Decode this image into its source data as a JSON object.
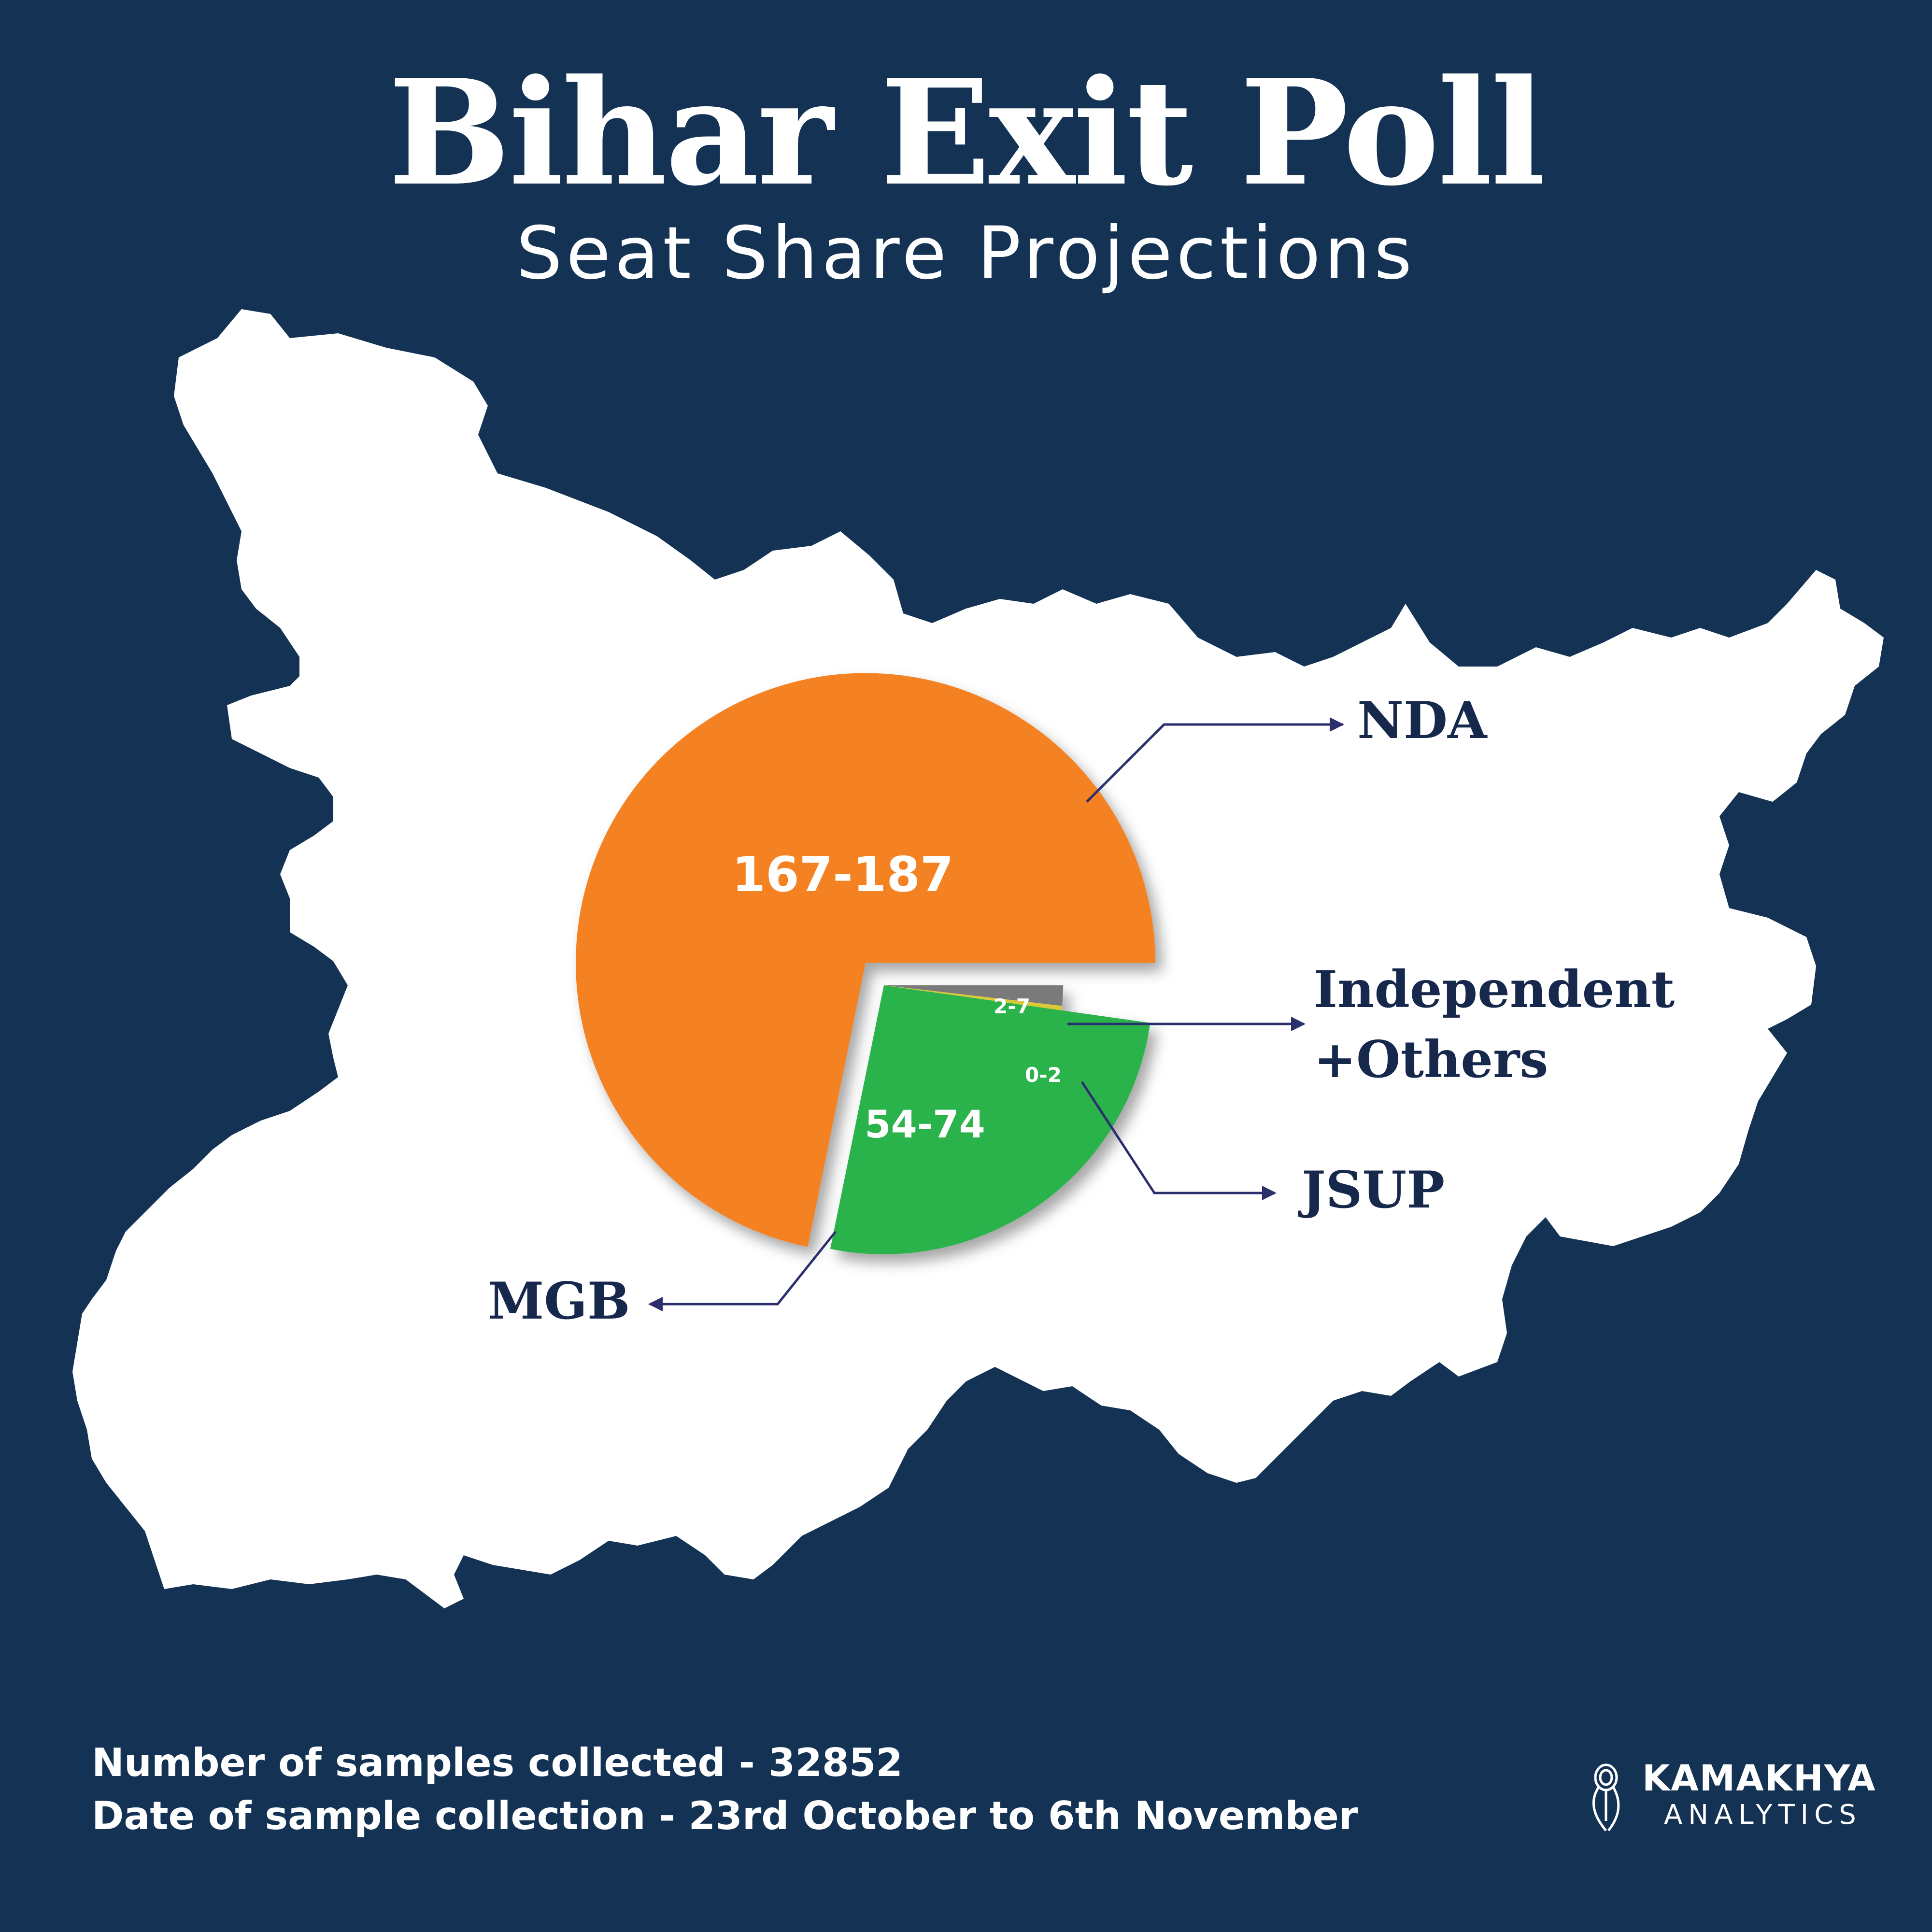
{
  "header": {
    "title": "Bihar Exit Poll",
    "subtitle": "Seat Share Projections"
  },
  "chart_data": {
    "type": "pie",
    "title": "Bihar Exit Poll",
    "subtitle": "Seat Share Projections",
    "background_shape": "Bihar state map silhouette",
    "slices": [
      {
        "name": "NDA",
        "value_label": "167-187",
        "range": [
          167,
          187
        ],
        "midpoint": 177,
        "color": "#f58220",
        "exploded": true
      },
      {
        "name": "MGB",
        "value_label": "54-74",
        "range": [
          54,
          74
        ],
        "midpoint": 64,
        "color": "#2bb24c",
        "exploded": false
      },
      {
        "name": "JSUP",
        "value_label": "0-2",
        "range": [
          0,
          2
        ],
        "midpoint": 1,
        "color": "#d9c93a",
        "exploded": false
      },
      {
        "name": "Independent +Others",
        "value_label": "2-7",
        "range": [
          2,
          7
        ],
        "midpoint": 4.5,
        "color": "#7a7a7a",
        "exploded": false
      }
    ],
    "callouts": {
      "nda": "NDA",
      "others_line1": "Independent",
      "others_line2": "+Others",
      "jsup": "JSUP",
      "mgb": "MGB"
    }
  },
  "footer": {
    "samples": "Number of samples collected - 32852",
    "dates": "Date of sample collection - 23rd October to 6th November"
  },
  "brand": {
    "name": "KAMAKHYA",
    "tagline": "ANALYTICS"
  },
  "colors": {
    "background": "#143354",
    "map": "#ffffff",
    "label_text": "#17284d",
    "leader_line": "#2c2f6e"
  }
}
